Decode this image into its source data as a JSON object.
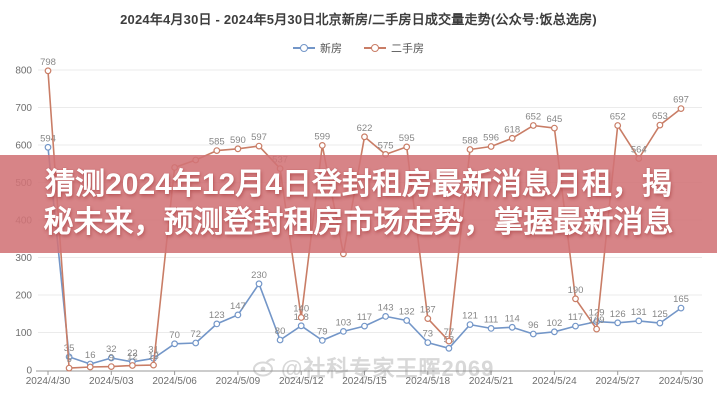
{
  "page": {
    "background": "#ffffff"
  },
  "header": {
    "title": "2024年4月30日 - 2024年5月30日北京新房/二手房日成交量走势(公众号:饭总选房)"
  },
  "legend": {
    "items": [
      {
        "label": "新房",
        "color": "#7396c8"
      },
      {
        "label": "二手房",
        "color": "#c97d66"
      }
    ]
  },
  "overlay": {
    "line1": "猜测2024年12月4日登封租房最新消息月租，揭",
    "line2": "秘未来，预测登封租房市场走势，掌握最新消息",
    "band_color": "rgba(210,115,118,0.88)",
    "text_color": "#ffffff"
  },
  "watermark": {
    "icon": "weibo-eye-icon",
    "text": "@社科专家王晖2069"
  },
  "chart_data": {
    "type": "line",
    "title": "2024年4月30日 - 2024年5月30日北京新房/二手房日成交量走势(公众号:饭总选房)",
    "xlabel": "",
    "ylabel": "",
    "ylim": [
      0,
      800
    ],
    "y_ticks": [
      0,
      100,
      200,
      300,
      400,
      500,
      600,
      700,
      800
    ],
    "grid": true,
    "legend_position": "top",
    "x": [
      "2024/4/30",
      "2024/5/01",
      "2024/5/02",
      "2024/5/03",
      "2024/5/04",
      "2024/5/05",
      "2024/5/06",
      "2024/5/07",
      "2024/5/08",
      "2024/5/09",
      "2024/5/10",
      "2024/5/11",
      "2024/5/12",
      "2024/5/13",
      "2024/5/14",
      "2024/5/15",
      "2024/5/16",
      "2024/5/17",
      "2024/5/18",
      "2024/5/19",
      "2024/5/20",
      "2024/5/21",
      "2024/5/22",
      "2024/5/23",
      "2024/5/24",
      "2024/5/25",
      "2024/5/26",
      "2024/5/27",
      "2024/5/28",
      "2024/5/29",
      "2024/5/30"
    ],
    "x_tick_labels": [
      "2024/4/30",
      "2024/5/03",
      "2024/5/06",
      "2024/5/09",
      "2024/5/12",
      "2024/5/15",
      "2024/5/18",
      "2024/5/21",
      "2024/5/24",
      "2024/5/27",
      "2024/5/30"
    ],
    "x_tick_every": 3,
    "series": [
      {
        "name": "新房",
        "color": "#7396c8",
        "values": [
          594,
          35,
          16,
          32,
          22,
          31,
          70,
          72,
          123,
          147,
          230,
          80,
          118,
          79,
          103,
          117,
          143,
          132,
          73,
          58,
          121,
          111,
          114,
          96,
          102,
          117,
          129,
          126,
          131,
          125,
          165
        ],
        "label_hidden_indices": []
      },
      {
        "name": "二手房",
        "color": "#c97d66",
        "values": [
          798,
          5,
          8,
          9,
          12,
          13,
          540,
          560,
          585,
          590,
          597,
          537,
          140,
          599,
          310,
          622,
          575,
          595,
          137,
          77,
          588,
          596,
          618,
          652,
          645,
          190,
          109,
          652,
          564,
          653,
          697
        ],
        "label_hidden_indices": [
          2,
          6,
          7,
          14
        ]
      }
    ]
  }
}
